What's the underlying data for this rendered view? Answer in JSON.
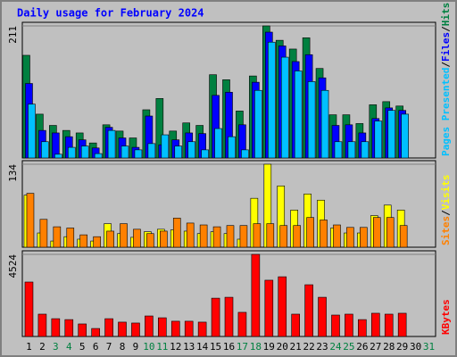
{
  "chart_data": {
    "type": "bar",
    "title": "Daily usage for February 2024",
    "categories": [
      "1",
      "2",
      "3",
      "4",
      "5",
      "6",
      "7",
      "8",
      "9",
      "10",
      "11",
      "12",
      "13",
      "14",
      "15",
      "16",
      "17",
      "18",
      "19",
      "20",
      "21",
      "22",
      "23",
      "24",
      "25",
      "26",
      "27",
      "28",
      "29",
      "30",
      "31"
    ],
    "category_colors": [
      "#000000",
      "#000000",
      "#008040",
      "#008040",
      "#000000",
      "#000000",
      "#000000",
      "#000000",
      "#000000",
      "#008040",
      "#008040",
      "#000000",
      "#000000",
      "#000000",
      "#000000",
      "#000000",
      "#008040",
      "#008040",
      "#000000",
      "#000000",
      "#000000",
      "#000000",
      "#000000",
      "#008040",
      "#008040",
      "#000000",
      "#000000",
      "#000000",
      "#000000",
      "#000000",
      "#008040"
    ],
    "legend_separator": "/",
    "panels": [
      {
        "ylim": [
          0,
          211
        ],
        "yticks": [
          211
        ],
        "series": [
          {
            "name": "Hits",
            "color": "#008040",
            "values": [
              164,
              70,
              52,
              44,
              40,
              24,
              53,
              43,
              32,
              77,
              95,
              43,
              56,
              52,
              133,
              125,
              75,
              131,
              211,
              188,
              174,
              192,
              143,
              69,
              69,
              55,
              85,
              90,
              83,
              null,
              null
            ]
          },
          {
            "name": "Files",
            "color": "#0000ff",
            "values": [
              119,
              44,
              40,
              34,
              29,
              16,
              49,
              32,
              17,
              67,
              21,
              29,
              40,
              39,
              100,
              105,
              53,
              121,
              201,
              179,
              154,
              165,
              128,
              52,
              53,
              40,
              63,
              80,
              76,
              null,
              null
            ]
          },
          {
            "name": "Pages Presented",
            "color": "#00c0ff",
            "values": [
              86,
              26,
              6,
              17,
              19,
              7,
              44,
              19,
              13,
              23,
              37,
              19,
              26,
              13,
              47,
              34,
              13,
              108,
              185,
              161,
              139,
              122,
              108,
              26,
              26,
              26,
              59,
              76,
              70,
              null,
              null
            ]
          }
        ]
      },
      {
        "ylim": [
          0,
          134
        ],
        "yticks": [
          134
        ],
        "series": [
          {
            "name": "Visits",
            "color": "#ffff00",
            "values": [
              84,
              23,
              10,
              17,
              13,
              10,
              38,
              22,
              16,
              25,
              29,
              28,
              26,
              22,
              25,
              22,
              13,
              79,
              134,
              99,
              60,
              86,
              76,
              31,
              23,
              23,
              51,
              68,
              60,
              null,
              null
            ]
          },
          {
            "name": "Sites",
            "color": "#ff8000",
            "values": [
              87,
              45,
              33,
              31,
              20,
              17,
              26,
              38,
              29,
              22,
              26,
              47,
              39,
              36,
              33,
              35,
              35,
              38,
              38,
              35,
              35,
              48,
              44,
              36,
              32,
              32,
              48,
              48,
              35,
              null,
              null
            ]
          }
        ]
      },
      {
        "ylim": [
          0,
          4524
        ],
        "yticks": [
          4524
        ],
        "series": [
          {
            "name": "KBytes",
            "color": "#ff0000",
            "values": [
              3000,
              1230,
              980,
              930,
              690,
              440,
              980,
              790,
              740,
              1130,
              1030,
              840,
              840,
              790,
              2110,
              2160,
              1330,
              4524,
              3100,
              3290,
              1230,
              2850,
              2160,
              1180,
              1230,
              930,
              1280,
              1230,
              1280,
              null,
              null
            ]
          }
        ]
      }
    ]
  }
}
